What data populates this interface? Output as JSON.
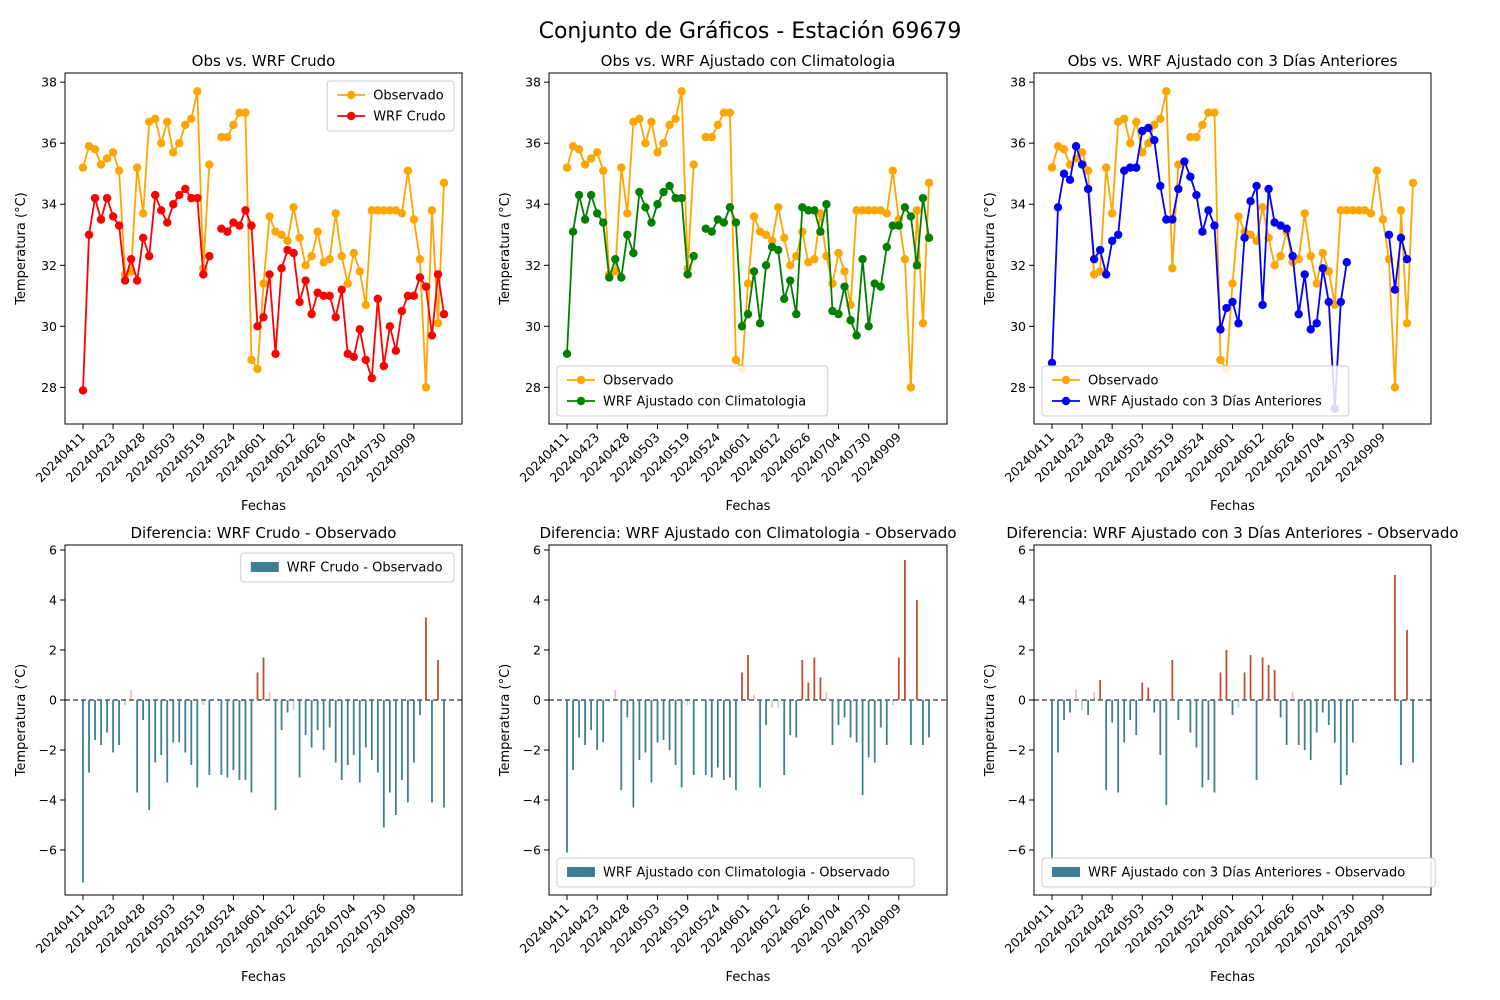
{
  "figure": {
    "title": "Conjunto de Gráficos - Estación 69679"
  },
  "colors": {
    "obs": "#ffa500",
    "raw": "#ff0000",
    "clim": "#008000",
    "prev3": "#0000ff",
    "neg_bar": "#3f7f93",
    "pos_bar": "#c0502f"
  },
  "chart_data": [
    {
      "type": "line",
      "title": "Obs vs. WRF Crudo",
      "xlabel": "Fechas",
      "ylabel": "Temperatura (°C)",
      "ylim": [
        26.8,
        38.3
      ],
      "yticks": [
        28,
        30,
        32,
        34,
        36,
        38
      ],
      "xticklabels": [
        "20240411",
        "20240423",
        "20240428",
        "20240503",
        "20240519",
        "20240524",
        "20240601",
        "20240612",
        "20240626",
        "20240704",
        "20240730",
        "20240909"
      ],
      "legend_position": "upper right",
      "series": [
        {
          "name": "Observado",
          "color": "#ffa500",
          "values": [
            35.2,
            35.9,
            35.8,
            35.3,
            35.5,
            35.7,
            35.1,
            31.7,
            31.8,
            35.2,
            33.7,
            36.7,
            36.8,
            36,
            36.7,
            35.7,
            36,
            36.6,
            36.8,
            37.7,
            31.9,
            35.3,
            null,
            36.2,
            36.2,
            36.6,
            37,
            37,
            28.9,
            28.6,
            31.4,
            33.6,
            33.1,
            33,
            32.8,
            33.9,
            32.9,
            32,
            32.3,
            33.1,
            32.1,
            32.2,
            33.7,
            32.3,
            31.4,
            32.4,
            31.8,
            30.7,
            33.8,
            33.8,
            33.8,
            33.8,
            33.8,
            33.7,
            35.1,
            33.5,
            32.2,
            28,
            33.8,
            30.1,
            34.7
          ]
        },
        {
          "name": "WRF Crudo",
          "color": "#ff0000",
          "values": [
            27.9,
            33,
            34.2,
            33.5,
            34.2,
            33.6,
            33.3,
            31.5,
            32.2,
            31.5,
            32.9,
            32.3,
            34.3,
            33.8,
            33.4,
            34,
            34.3,
            34.5,
            34.2,
            34.2,
            31.7,
            32.3,
            null,
            33.2,
            33.1,
            33.4,
            33.3,
            33.8,
            33.3,
            30,
            30.3,
            31.7,
            29.1,
            31.9,
            32.5,
            32.4,
            30.8,
            31.5,
            30.4,
            31.1,
            31,
            31,
            30.3,
            31.2,
            29.1,
            29,
            29.9,
            28.9,
            28.3,
            30.9,
            28.7,
            30,
            29.2,
            30.5,
            31,
            31,
            31.6,
            31.3,
            29.7,
            31.7,
            30.4
          ]
        }
      ]
    },
    {
      "type": "line",
      "title": "Obs vs. WRF Ajustado con Climatologia",
      "xlabel": "Fechas",
      "ylabel": "Temperatura (°C)",
      "ylim": [
        26.8,
        38.3
      ],
      "yticks": [
        28,
        30,
        32,
        34,
        36,
        38
      ],
      "xticklabels": [
        "20240411",
        "20240423",
        "20240428",
        "20240503",
        "20240519",
        "20240524",
        "20240601",
        "20240612",
        "20240626",
        "20240704",
        "20240730",
        "20240909"
      ],
      "legend_position": "lower left",
      "series": [
        {
          "name": "Observado",
          "color": "#ffa500",
          "values": [
            35.2,
            35.9,
            35.8,
            35.3,
            35.5,
            35.7,
            35.1,
            31.7,
            31.8,
            35.2,
            33.7,
            36.7,
            36.8,
            36,
            36.7,
            35.7,
            36,
            36.6,
            36.8,
            37.7,
            31.9,
            35.3,
            null,
            36.2,
            36.2,
            36.6,
            37,
            37,
            28.9,
            28.6,
            31.4,
            33.6,
            33.1,
            33,
            32.8,
            33.9,
            32.9,
            32,
            32.3,
            33.1,
            32.1,
            32.2,
            33.7,
            32.3,
            31.4,
            32.4,
            31.8,
            30.7,
            33.8,
            33.8,
            33.8,
            33.8,
            33.8,
            33.7,
            35.1,
            33.5,
            32.2,
            28,
            33.8,
            30.1,
            34.7
          ]
        },
        {
          "name": "WRF Ajustado con Climatologia",
          "color": "#008000",
          "values": [
            29.1,
            33.1,
            34.3,
            33.5,
            34.3,
            33.7,
            33.4,
            31.6,
            32.2,
            31.6,
            33,
            32.4,
            34.4,
            33.9,
            33.4,
            34,
            34.4,
            34.6,
            34.2,
            34.2,
            31.7,
            32.3,
            null,
            33.2,
            33.1,
            33.5,
            33.4,
            33.9,
            33.4,
            30,
            30.4,
            31.8,
            30.1,
            32,
            32.6,
            32.5,
            30.9,
            31.5,
            30.4,
            33.9,
            33.8,
            33.8,
            33.1,
            34,
            30.5,
            30.4,
            31.3,
            30.2,
            29.7,
            32.2,
            30,
            31.4,
            31.3,
            32.6,
            33.3,
            33.3,
            33.9,
            33.6,
            32,
            34.2,
            32.9
          ]
        }
      ]
    },
    {
      "type": "line",
      "title": "Obs vs. WRF Ajustado con 3 Días Anteriores",
      "xlabel": "Fechas",
      "ylabel": "Temperatura (°C)",
      "ylim": [
        26.8,
        38.3
      ],
      "yticks": [
        28,
        30,
        32,
        34,
        36,
        38
      ],
      "xticklabels": [
        "20240411",
        "20240423",
        "20240428",
        "20240503",
        "20240519",
        "20240524",
        "20240601",
        "20240612",
        "20240626",
        "20240704",
        "20240730",
        "20240909"
      ],
      "legend_position": "lower left",
      "series": [
        {
          "name": "Observado",
          "color": "#ffa500",
          "values": [
            35.2,
            35.9,
            35.8,
            35.3,
            35.5,
            35.7,
            35.1,
            31.7,
            31.8,
            35.2,
            33.7,
            36.7,
            36.8,
            36,
            36.7,
            35.7,
            36,
            36.6,
            36.8,
            37.7,
            31.9,
            35.3,
            null,
            36.2,
            36.2,
            36.6,
            37,
            37,
            28.9,
            28.6,
            31.4,
            33.6,
            33.1,
            33,
            32.8,
            33.9,
            32.9,
            32,
            32.3,
            33.1,
            32.1,
            32.2,
            33.7,
            32.3,
            31.4,
            32.4,
            31.8,
            30.7,
            33.8,
            33.8,
            33.8,
            33.8,
            33.8,
            33.7,
            35.1,
            33.5,
            32.2,
            28,
            33.8,
            30.1,
            34.7
          ]
        },
        {
          "name": "WRF Ajustado con 3 Días Anteriores",
          "color": "#0000ff",
          "values": [
            28.8,
            33.9,
            35,
            34.8,
            35.9,
            35.3,
            34.5,
            32.2,
            32.5,
            31.7,
            32.8,
            33,
            35.1,
            35.2,
            35.2,
            36.4,
            36.5,
            36.1,
            34.6,
            33.5,
            33.5,
            34.5,
            35.4,
            34.9,
            34.3,
            33.1,
            33.8,
            33.3,
            29.9,
            30.6,
            30.8,
            30.1,
            32.9,
            34.1,
            34.6,
            30.7,
            34.5,
            33.4,
            33.3,
            33.2,
            32.3,
            30.4,
            31.7,
            29.9,
            30.1,
            31.9,
            30.8,
            27.3,
            30.8,
            32.1,
            null,
            null,
            null,
            null,
            null,
            null,
            33,
            31.2,
            32.9,
            32.2,
            null
          ]
        }
      ]
    },
    {
      "type": "bar",
      "title": "Diferencia: WRF Crudo - Observado",
      "xlabel": "Fechas",
      "ylabel": "Temperatura (°C)",
      "ylim": [
        -7.8,
        6.2
      ],
      "yticks": [
        -6,
        -4,
        -2,
        0,
        2,
        4,
        6
      ],
      "xticklabels": [
        "20240411",
        "20240423",
        "20240428",
        "20240503",
        "20240519",
        "20240524",
        "20240601",
        "20240612",
        "20240626",
        "20240704",
        "20240730",
        "20240909"
      ],
      "legend_position": "upper right",
      "series": [
        {
          "name": "WRF Crudo - Observado",
          "values": [
            -7.3,
            -2.9,
            -1.6,
            -1.8,
            -1.3,
            -2.1,
            -1.8,
            -0.2,
            0.4,
            -3.7,
            -0.8,
            -4.4,
            -2.5,
            -2.2,
            -3.3,
            -1.7,
            -1.7,
            -2.1,
            -2.6,
            -3.5,
            -0.2,
            -3,
            null,
            -3,
            -3.1,
            -2.8,
            -3.2,
            -3.2,
            -3.7,
            1.1,
            1.7,
            0.3,
            -4.4,
            -1.2,
            -0.5,
            -0.4,
            -3.1,
            -1.4,
            -1.9,
            -1.2,
            -2,
            -1.1,
            -2.5,
            -3.2,
            -2.6,
            -2.2,
            -3.3,
            -1.9,
            -2.4,
            -2.9,
            -5.1,
            -3.7,
            -4.6,
            -3.2,
            -4.1,
            -2.5,
            -0.6,
            3.3,
            -4.1,
            1.6,
            -4.3
          ]
        }
      ]
    },
    {
      "type": "bar",
      "title": "Diferencia: WRF Ajustado con Climatologia - Observado",
      "xlabel": "Fechas",
      "ylabel": "Temperatura (°C)",
      "ylim": [
        -7.8,
        6.2
      ],
      "yticks": [
        -6,
        -4,
        -2,
        0,
        2,
        4,
        6
      ],
      "xticklabels": [
        "20240411",
        "20240423",
        "20240428",
        "20240503",
        "20240519",
        "20240524",
        "20240601",
        "20240612",
        "20240626",
        "20240704",
        "20240730",
        "20240909"
      ],
      "legend_position": "lower left",
      "series": [
        {
          "name": "WRF Ajustado con Climatologia - Observado",
          "values": [
            -6.1,
            -2.8,
            -1.5,
            -1.8,
            -1.2,
            -2,
            -1.7,
            -0.1,
            0.4,
            -3.6,
            -0.7,
            -4.3,
            -2.4,
            -2.1,
            -3.3,
            -1.7,
            -1.6,
            -2,
            -2.6,
            -3.5,
            -0.2,
            -3,
            null,
            -3,
            -3.1,
            -2.7,
            -3.2,
            -3.1,
            -3.6,
            1.1,
            1.8,
            0.2,
            -3.5,
            -1,
            -0.3,
            -0.3,
            -3,
            -1.4,
            -1.5,
            1.6,
            0.7,
            1.7,
            0.9,
            0.3,
            -1.8,
            -1,
            -0.7,
            -1.5,
            -1.7,
            -3.8,
            -2.3,
            -2.5,
            -1.1,
            -1.8,
            -0.2,
            1.7,
            5.6,
            -1.8,
            4,
            -1.8,
            -1.5
          ]
        }
      ]
    },
    {
      "type": "bar",
      "title": "Diferencia: WRF Ajustado con 3 Días Anteriores - Observado",
      "xlabel": "Fechas",
      "ylabel": "Temperatura (°C)",
      "ylim": [
        -7.8,
        6.2
      ],
      "yticks": [
        -6,
        -4,
        -2,
        0,
        2,
        4,
        6
      ],
      "xticklabels": [
        "20240411",
        "20240423",
        "20240428",
        "20240503",
        "20240519",
        "20240524",
        "20240601",
        "20240612",
        "20240626",
        "20240704",
        "20240730",
        "20240909"
      ],
      "legend_position": "lower left",
      "series": [
        {
          "name": "WRF Ajustado con 3 Días Anteriores - Observado",
          "values": [
            -6.4,
            -2.1,
            -0.8,
            -0.5,
            0.4,
            -0.4,
            -0.6,
            0.3,
            0.8,
            -3.6,
            -0.9,
            -3.7,
            -1.7,
            -0.8,
            -1.4,
            0.7,
            0.5,
            -0.5,
            -2.2,
            -4.2,
            1.6,
            -0.8,
            null,
            -1.3,
            -1.9,
            -3.5,
            -3.2,
            -3.7,
            1.1,
            2,
            -0.6,
            -0.3,
            1.1,
            1.8,
            -3.2,
            1.7,
            1.4,
            1.2,
            -0.7,
            -1.8,
            0.3,
            -1.8,
            -2,
            -2.4,
            -1.3,
            -0.5,
            -1,
            -1.7,
            -3.4,
            -3,
            -1.7,
            null,
            null,
            null,
            null,
            null,
            null,
            5,
            -2.6,
            2.8,
            -2.5
          ]
        }
      ]
    }
  ]
}
